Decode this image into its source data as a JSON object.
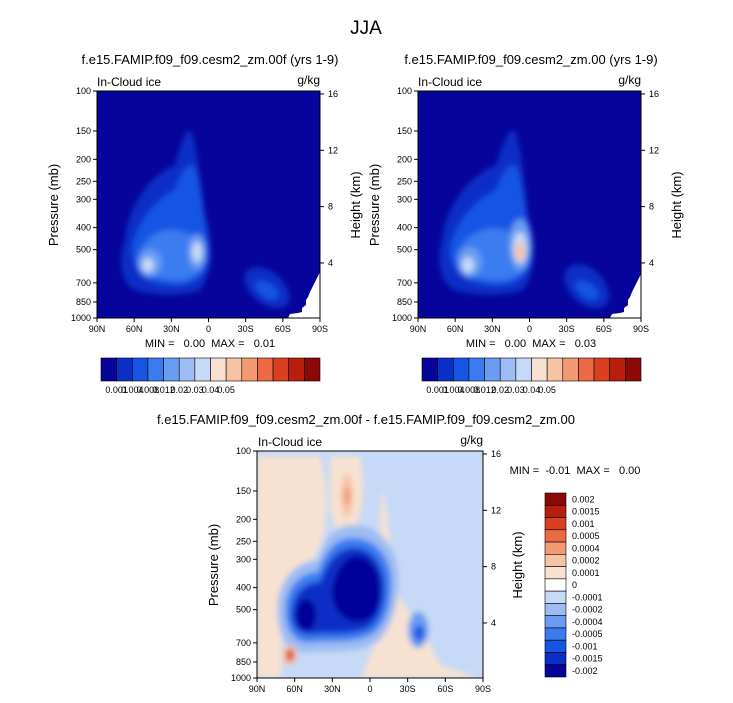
{
  "main_title": "JJA",
  "chart_data": [
    {
      "type": "heatmap",
      "title": "f.e15.FAMIP.f09_f09.cesm2_zm.00f (yrs 1-9)",
      "left_label": "In-Cloud ice",
      "units": "g/kg",
      "ylabel": "Pressure (mb)",
      "ylabel_right": "Height (km)",
      "x_ticks": [
        "90N",
        "60N",
        "30N",
        "0",
        "30S",
        "60S",
        "90S"
      ],
      "y_ticks": [
        "100",
        "150",
        "200",
        "250",
        "300",
        "400",
        "500",
        "700",
        "850",
        "1000"
      ],
      "y_ticks_right": [
        "16",
        "12",
        "8",
        "4"
      ],
      "stats": "MIN =   0.00  MAX =   0.01",
      "colorbar": {
        "colors": [
          "#06049a",
          "#0a2fc6",
          "#1655e4",
          "#3a7bf0",
          "#6a9cf2",
          "#9dbcf3",
          "#c6d9f6",
          "#f7e2d2",
          "#f6c3a5",
          "#f39a72",
          "#ec6a43",
          "#da3f22",
          "#b81e0b",
          "#8a0907"
        ],
        "labels": [
          "0.001",
          "0.004",
          "0.008",
          "0.012",
          "0.02",
          "0.03",
          "0.04",
          "0.05"
        ]
      }
    },
    {
      "type": "heatmap",
      "title": "f.e15.FAMIP.f09_f09.cesm2_zm.00 (yrs 1-9)",
      "left_label": "In-Cloud ice",
      "units": "g/kg",
      "ylabel": "Pressure (mb)",
      "ylabel_right": "Height (km)",
      "x_ticks": [
        "90N",
        "60N",
        "30N",
        "0",
        "30S",
        "60S",
        "90S"
      ],
      "y_ticks": [
        "100",
        "150",
        "200",
        "250",
        "300",
        "400",
        "500",
        "700",
        "850",
        "1000"
      ],
      "y_ticks_right": [
        "16",
        "12",
        "8",
        "4"
      ],
      "stats": "MIN =   0.00  MAX =   0.03",
      "colorbar": {
        "colors": [
          "#06049a",
          "#0a2fc6",
          "#1655e4",
          "#3a7bf0",
          "#6a9cf2",
          "#9dbcf3",
          "#c6d9f6",
          "#f7e2d2",
          "#f6c3a5",
          "#f39a72",
          "#ec6a43",
          "#da3f22",
          "#b81e0b",
          "#8a0907"
        ],
        "labels": [
          "0.001",
          "0.004",
          "0.008",
          "0.012",
          "0.02",
          "0.03",
          "0.04",
          "0.05"
        ]
      }
    },
    {
      "type": "heatmap",
      "title": "f.e15.FAMIP.f09_f09.cesm2_zm.00f - f.e15.FAMIP.f09_f09.cesm2_zm.00",
      "left_label": "In-Cloud ice",
      "units": "g/kg",
      "ylabel": "Pressure (mb)",
      "ylabel_right": "Height (km)",
      "x_ticks": [
        "90N",
        "60N",
        "30N",
        "0",
        "30S",
        "60S",
        "90S"
      ],
      "y_ticks": [
        "100",
        "150",
        "200",
        "250",
        "300",
        "400",
        "500",
        "700",
        "850",
        "1000"
      ],
      "y_ticks_right": [
        "16",
        "12",
        "8",
        "4"
      ],
      "stats": "MIN =  -0.01  MAX =   0.00",
      "colorbar": {
        "colors": [
          "#8a0907",
          "#b81e0b",
          "#da3f22",
          "#ec6a43",
          "#f39a72",
          "#f6c3a5",
          "#f7e2d2",
          "#ffffff",
          "#c6d9f6",
          "#9dbcf3",
          "#6a9cf2",
          "#3a7bf0",
          "#1655e4",
          "#0a2fc6",
          "#06049a"
        ],
        "labels": [
          "0.002",
          "0.0015",
          "0.001",
          "0.0005",
          "0.0004",
          "0.0002",
          "0.0001",
          "0",
          "-0.0001",
          "-0.0002",
          "-0.0004",
          "-0.0005",
          "-0.001",
          "-0.0015",
          "-0.002"
        ]
      }
    }
  ]
}
